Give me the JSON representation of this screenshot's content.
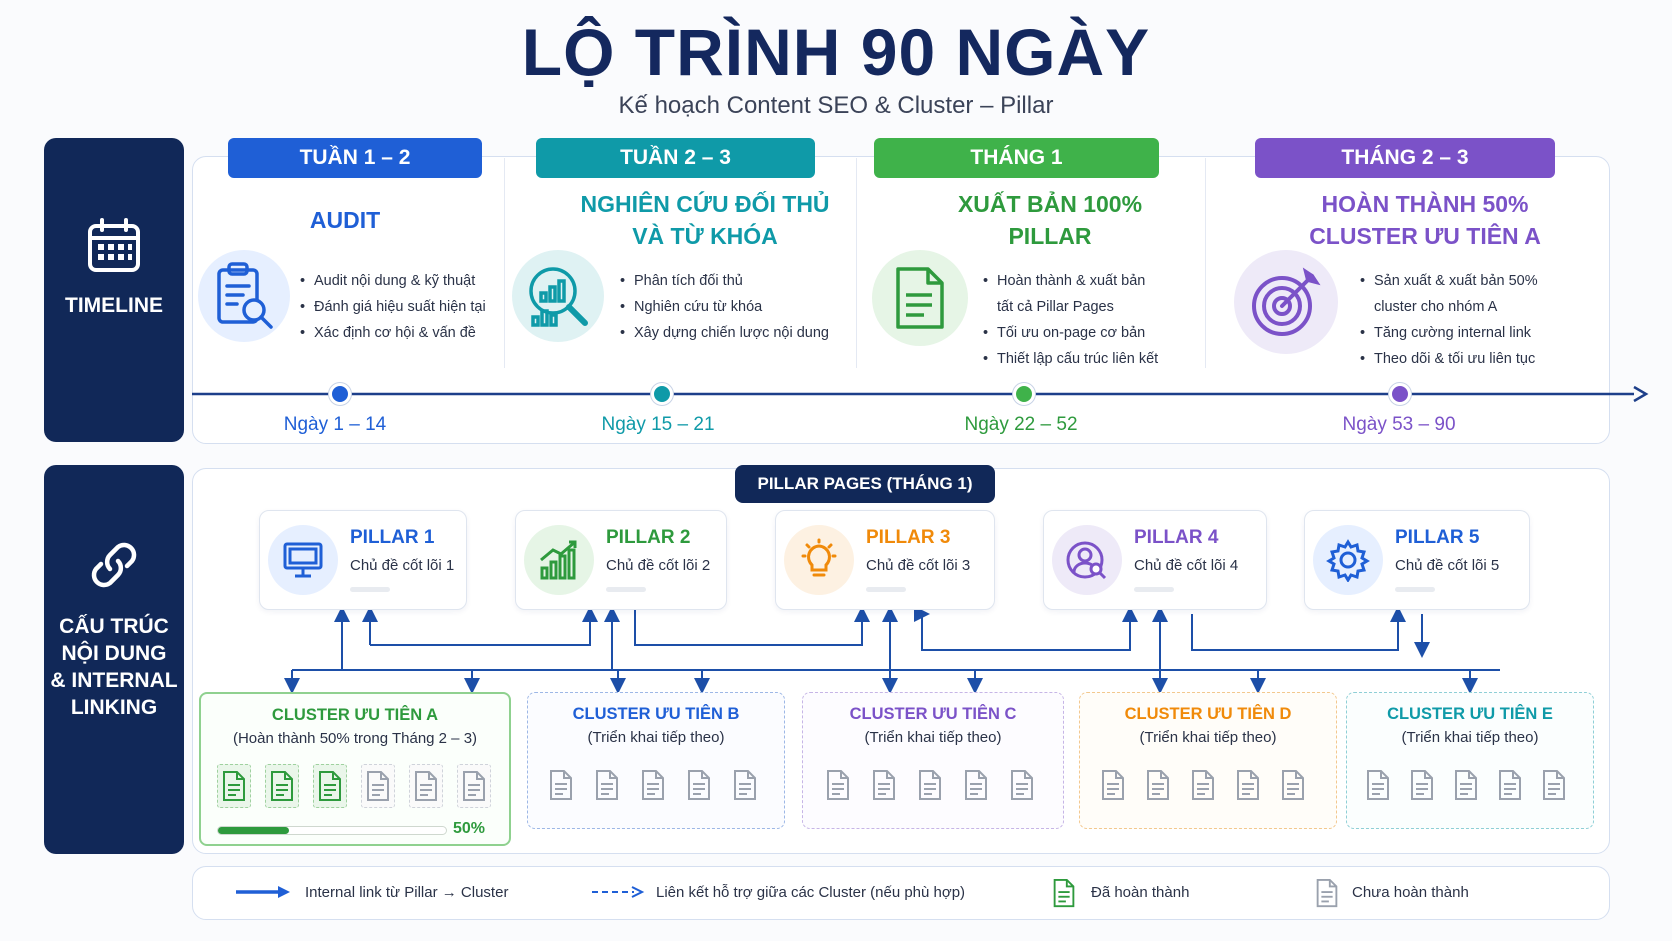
{
  "title": "LỘ TRÌNH 90 NGÀY",
  "subtitle": "Kế hoạch Content SEO & Cluster – Pillar",
  "sections": {
    "timeline_label": "TIMELINE",
    "structure_label": [
      "CẤU TRÚC",
      "NỘI DUNG",
      "& INTERNAL",
      "LINKING"
    ]
  },
  "phases": [
    {
      "tab": "TUẦN 1 – 2",
      "heading": [
        "AUDIT"
      ],
      "bullets": [
        [
          "Audit nội dung & kỹ thuật"
        ],
        [
          "Đánh giá hiệu suất hiện tại"
        ],
        [
          "Xác định cơ hội & vấn đề"
        ]
      ],
      "days": "Ngày 1 – 14",
      "color": "#1f5fd6",
      "icon": "clipboard-search-icon"
    },
    {
      "tab": "TUẦN 2 – 3",
      "heading": [
        "NGHIÊN CỨU ĐỐI THỦ",
        "VÀ TỪ KHÓA"
      ],
      "bullets": [
        [
          "Phân tích đối thủ"
        ],
        [
          "Nghiên cứu từ khóa"
        ],
        [
          "Xây dựng chiến lược nội dung"
        ]
      ],
      "days": "Ngày 15 – 21",
      "color": "#0f9aa8",
      "icon": "magnifier-chart-icon"
    },
    {
      "tab": "THÁNG 1",
      "heading": [
        "XUẤT BẢN 100%",
        "PILLAR"
      ],
      "bullets": [
        [
          "Hoàn thành & xuất bản",
          "tất cả Pillar Pages"
        ],
        [
          "Tối ưu on-page cơ bản"
        ],
        [
          "Thiết lập cấu trúc liên kết"
        ]
      ],
      "days": "Ngày 22 – 52",
      "color": "#3fb24a",
      "icon": "document-icon"
    },
    {
      "tab": "THÁNG 2 – 3",
      "heading": [
        "HOÀN THÀNH 50%",
        "CLUSTER ƯU TIÊN A"
      ],
      "bullets": [
        [
          "Sản xuất & xuất bản 50%",
          "cluster cho nhóm A"
        ],
        [
          "Tăng cường internal link"
        ],
        [
          "Theo dõi & tối ưu liên tục"
        ]
      ],
      "days": "Ngày 53 – 90",
      "color": "#7b52c8",
      "icon": "target-icon"
    }
  ],
  "pillar_header": "PILLAR PAGES (THÁNG 1)",
  "pillars": [
    {
      "title": "PILLAR 1",
      "subtitle": "Chủ đề cốt lõi 1",
      "color": "#1f5fd6",
      "icon": "monitor-icon"
    },
    {
      "title": "PILLAR 2",
      "subtitle": "Chủ đề cốt lõi 2",
      "color": "#2e9a3d",
      "icon": "growth-chart-icon"
    },
    {
      "title": "PILLAR 3",
      "subtitle": "Chủ đề cốt lõi 3",
      "color": "#f08a0a",
      "icon": "lightbulb-icon"
    },
    {
      "title": "PILLAR 4",
      "subtitle": "Chủ đề cốt lõi 4",
      "color": "#7b52c8",
      "icon": "user-search-icon"
    },
    {
      "title": "PILLAR 5",
      "subtitle": "Chủ đề cốt lõi 5",
      "color": "#1f5fd6",
      "icon": "gear-icon"
    }
  ],
  "clusters": [
    {
      "title": "CLUSTER ƯU TIÊN A",
      "subtitle": "(Hoàn thành 50% trong Tháng 2 – 3)",
      "color": "#2e9a3d",
      "done": 3,
      "total": 6,
      "progress": 0.5,
      "progress_label": "50%"
    },
    {
      "title": "CLUSTER ƯU TIÊN B",
      "subtitle": "(Triển khai tiếp theo)",
      "color": "#1f5fd6",
      "done": 0,
      "total": 5
    },
    {
      "title": "CLUSTER ƯU TIÊN C",
      "subtitle": "(Triển khai tiếp theo)",
      "color": "#7b52c8",
      "done": 0,
      "total": 5
    },
    {
      "title": "CLUSTER ƯU TIÊN D",
      "subtitle": "(Triển khai tiếp theo)",
      "color": "#f08a0a",
      "done": 0,
      "total": 5
    },
    {
      "title": "CLUSTER ƯU TIÊN E",
      "subtitle": "(Triển khai tiếp theo)",
      "color": "#0f9aa8",
      "done": 0,
      "total": 5
    }
  ],
  "legend": {
    "solid": "Internal link từ Pillar → Cluster",
    "dashed": "Liên kết hỗ trợ giữa các Cluster (nếu phù hợp)",
    "done": "Đã hoàn thành",
    "todo": "Chưa hoàn thành"
  }
}
